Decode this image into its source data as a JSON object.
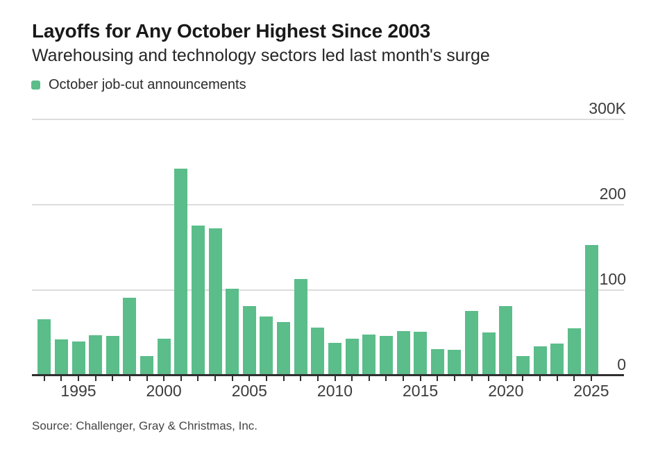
{
  "header": {
    "title": "Layoffs for Any October Highest Since 2003",
    "subtitle": "Warehousing and technology sectors led last month's surge"
  },
  "legend": {
    "label": "October job-cut announcements",
    "swatch_color": "#5bbd8a"
  },
  "chart_data": {
    "type": "bar",
    "title": "Layoffs for Any October Highest Since 2003",
    "subtitle": "Warehousing and technology sectors led last month's surge",
    "series_name": "October job-cut announcements",
    "unit": "thousands of announced job cuts",
    "categories": [
      1993,
      1994,
      1995,
      1996,
      1997,
      1998,
      1999,
      2000,
      2001,
      2002,
      2003,
      2004,
      2005,
      2006,
      2007,
      2008,
      2009,
      2010,
      2011,
      2012,
      2013,
      2014,
      2015,
      2016,
      2017,
      2018,
      2019,
      2020,
      2021,
      2022,
      2023,
      2024,
      2025
    ],
    "values": [
      66,
      42,
      40,
      47,
      46,
      91,
      23,
      43,
      242,
      176,
      172,
      102,
      81,
      69,
      63,
      113,
      56,
      38,
      43,
      48,
      46,
      52,
      51,
      31,
      30,
      76,
      50,
      81,
      23,
      34,
      37,
      55,
      153
    ],
    "ylim": [
      0,
      300
    ],
    "yticks": [
      {
        "value": 0,
        "label": "0"
      },
      {
        "value": 100,
        "label": "100"
      },
      {
        "value": 200,
        "label": "200"
      },
      {
        "value": 300,
        "label": "300K"
      }
    ],
    "xtick_years": [
      1995,
      2000,
      2005,
      2010,
      2015,
      2020,
      2025
    ],
    "bar_color": "#5bbd8a",
    "gridline_color": "#dcdcdc",
    "axis_color": "#2f2f2f",
    "grid": true,
    "legend_position": "top-left"
  },
  "footer": {
    "source": "Source: Challenger, Gray & Christmas, Inc."
  }
}
